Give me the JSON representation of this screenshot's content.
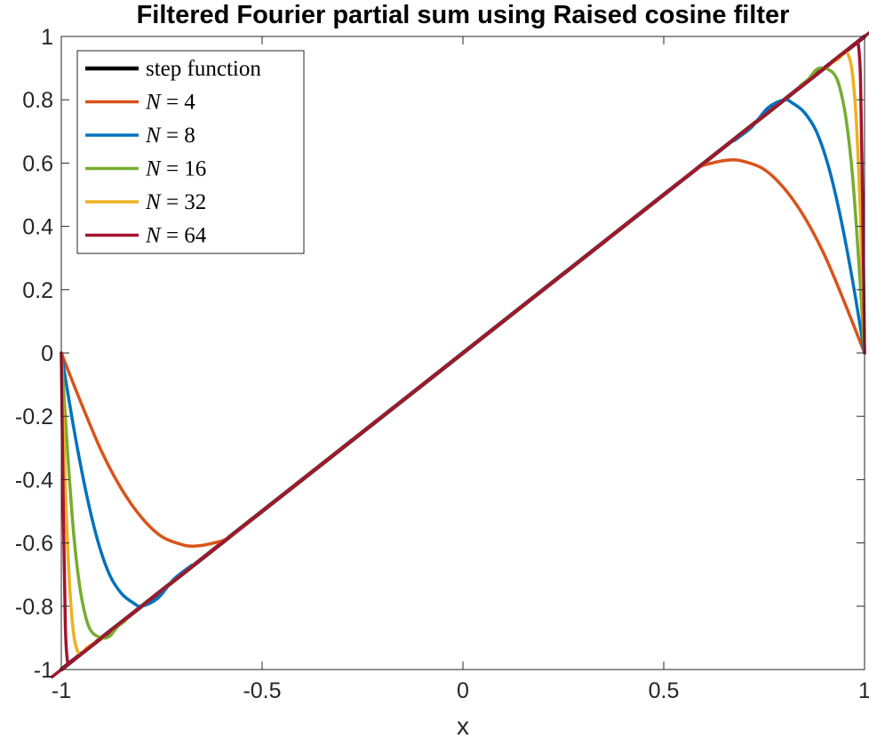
{
  "chart_data": {
    "type": "line",
    "title": "Filtered Fourier partial sum using Raised cosine filter",
    "xlabel": "x",
    "ylabel": "",
    "xlim": [
      -1,
      1
    ],
    "ylim": [
      -1,
      1
    ],
    "xticks": [
      -1,
      -0.5,
      0,
      0.5,
      1
    ],
    "xtick_labels": [
      "-1",
      "-0.5",
      "0",
      "0.5",
      "1"
    ],
    "yticks": [
      1,
      0.8,
      0.6,
      0.4,
      0.2,
      0,
      -0.2,
      -0.4,
      -0.6,
      -0.8,
      -1
    ],
    "ytick_labels": [
      "1",
      "0.8",
      "0.6",
      "0.4",
      "0.2",
      "0",
      "-0.2",
      "-0.4",
      "-0.6",
      "-0.8",
      "-1"
    ],
    "grid": false,
    "legend_position": "top-left",
    "series": [
      {
        "name": "step function",
        "color": "#000000",
        "x": [
          -1,
          1
        ],
        "y": [
          -1,
          1
        ]
      },
      {
        "name": "N = 4",
        "legend_var": "N",
        "legend_val": "4",
        "color": "#D95319",
        "x": [
          -1,
          -0.95,
          -0.9,
          -0.85,
          -0.8,
          -0.75,
          -0.7,
          -0.667,
          -0.62,
          -0.58,
          -0.5,
          -0.3,
          0,
          0.3,
          0.5,
          0.58,
          0.62,
          0.667,
          0.7,
          0.75,
          0.8,
          0.85,
          0.9,
          0.95,
          1
        ],
        "y": [
          0,
          -0.16,
          -0.31,
          -0.43,
          -0.52,
          -0.58,
          -0.605,
          -0.61,
          -0.6,
          -0.58,
          -0.5,
          -0.3,
          0,
          0.3,
          0.5,
          0.58,
          0.6,
          0.61,
          0.605,
          0.58,
          0.52,
          0.43,
          0.31,
          0.16,
          0
        ]
      },
      {
        "name": "N = 8",
        "legend_var": "N",
        "legend_val": "8",
        "color": "#0072BD",
        "x": [
          -1,
          -0.97,
          -0.94,
          -0.91,
          -0.88,
          -0.85,
          -0.82,
          -0.8,
          -0.76,
          -0.72,
          -0.68,
          -0.6,
          0,
          0.6,
          0.68,
          0.72,
          0.76,
          0.8,
          0.82,
          0.85,
          0.88,
          0.91,
          0.94,
          0.97,
          1
        ],
        "y": [
          0,
          -0.23,
          -0.43,
          -0.59,
          -0.7,
          -0.76,
          -0.79,
          -0.8,
          -0.775,
          -0.715,
          -0.675,
          -0.6,
          0,
          0.6,
          0.675,
          0.715,
          0.775,
          0.8,
          0.79,
          0.76,
          0.7,
          0.59,
          0.43,
          0.23,
          0
        ]
      },
      {
        "name": "N = 16",
        "legend_var": "N",
        "legend_val": "16",
        "color": "#77AC30",
        "x": [
          -1,
          -0.985,
          -0.97,
          -0.955,
          -0.94,
          -0.925,
          -0.9,
          -0.88,
          -0.86,
          -0.84,
          -0.8,
          0,
          0.8,
          0.84,
          0.86,
          0.88,
          0.9,
          0.925,
          0.94,
          0.955,
          0.97,
          0.985,
          1
        ],
        "y": [
          0,
          -0.3,
          -0.56,
          -0.73,
          -0.83,
          -0.88,
          -0.9,
          -0.895,
          -0.865,
          -0.845,
          -0.8,
          0,
          0.8,
          0.845,
          0.865,
          0.895,
          0.9,
          0.88,
          0.83,
          0.73,
          0.56,
          0.3,
          0
        ]
      },
      {
        "name": "N = 32",
        "legend_var": "N",
        "legend_val": "32",
        "color": "#EDB120",
        "x": [
          -1,
          -0.99,
          -0.98,
          -0.97,
          -0.96,
          -0.95,
          -0.94,
          -0.93,
          -0.91,
          -0.9,
          0,
          0.9,
          0.91,
          0.93,
          0.94,
          0.95,
          0.96,
          0.97,
          0.98,
          0.99,
          1
        ],
        "y": [
          0,
          -0.42,
          -0.72,
          -0.88,
          -0.94,
          -0.95,
          -0.935,
          -0.925,
          -0.91,
          -0.9,
          0,
          0.9,
          0.91,
          0.925,
          0.935,
          0.95,
          0.94,
          0.88,
          0.72,
          0.42,
          0
        ]
      },
      {
        "name": "N = 64",
        "legend_var": "N",
        "legend_val": "64",
        "color": "#A2142F",
        "x": [
          -1,
          -0.995,
          -0.99,
          -0.985,
          -0.98,
          -0.975,
          -0.97,
          -0.96,
          -0.95,
          0,
          0.95,
          0.96,
          0.97,
          0.975,
          0.98,
          0.985,
          0.99,
          0.995,
          1
        ],
        "y": [
          0,
          -0.5,
          -0.86,
          -0.97,
          -0.98,
          -0.975,
          -0.97,
          -0.96,
          -0.95,
          0,
          0.95,
          0.96,
          0.97,
          0.975,
          0.98,
          0.97,
          0.86,
          0.5,
          0
        ]
      }
    ]
  }
}
